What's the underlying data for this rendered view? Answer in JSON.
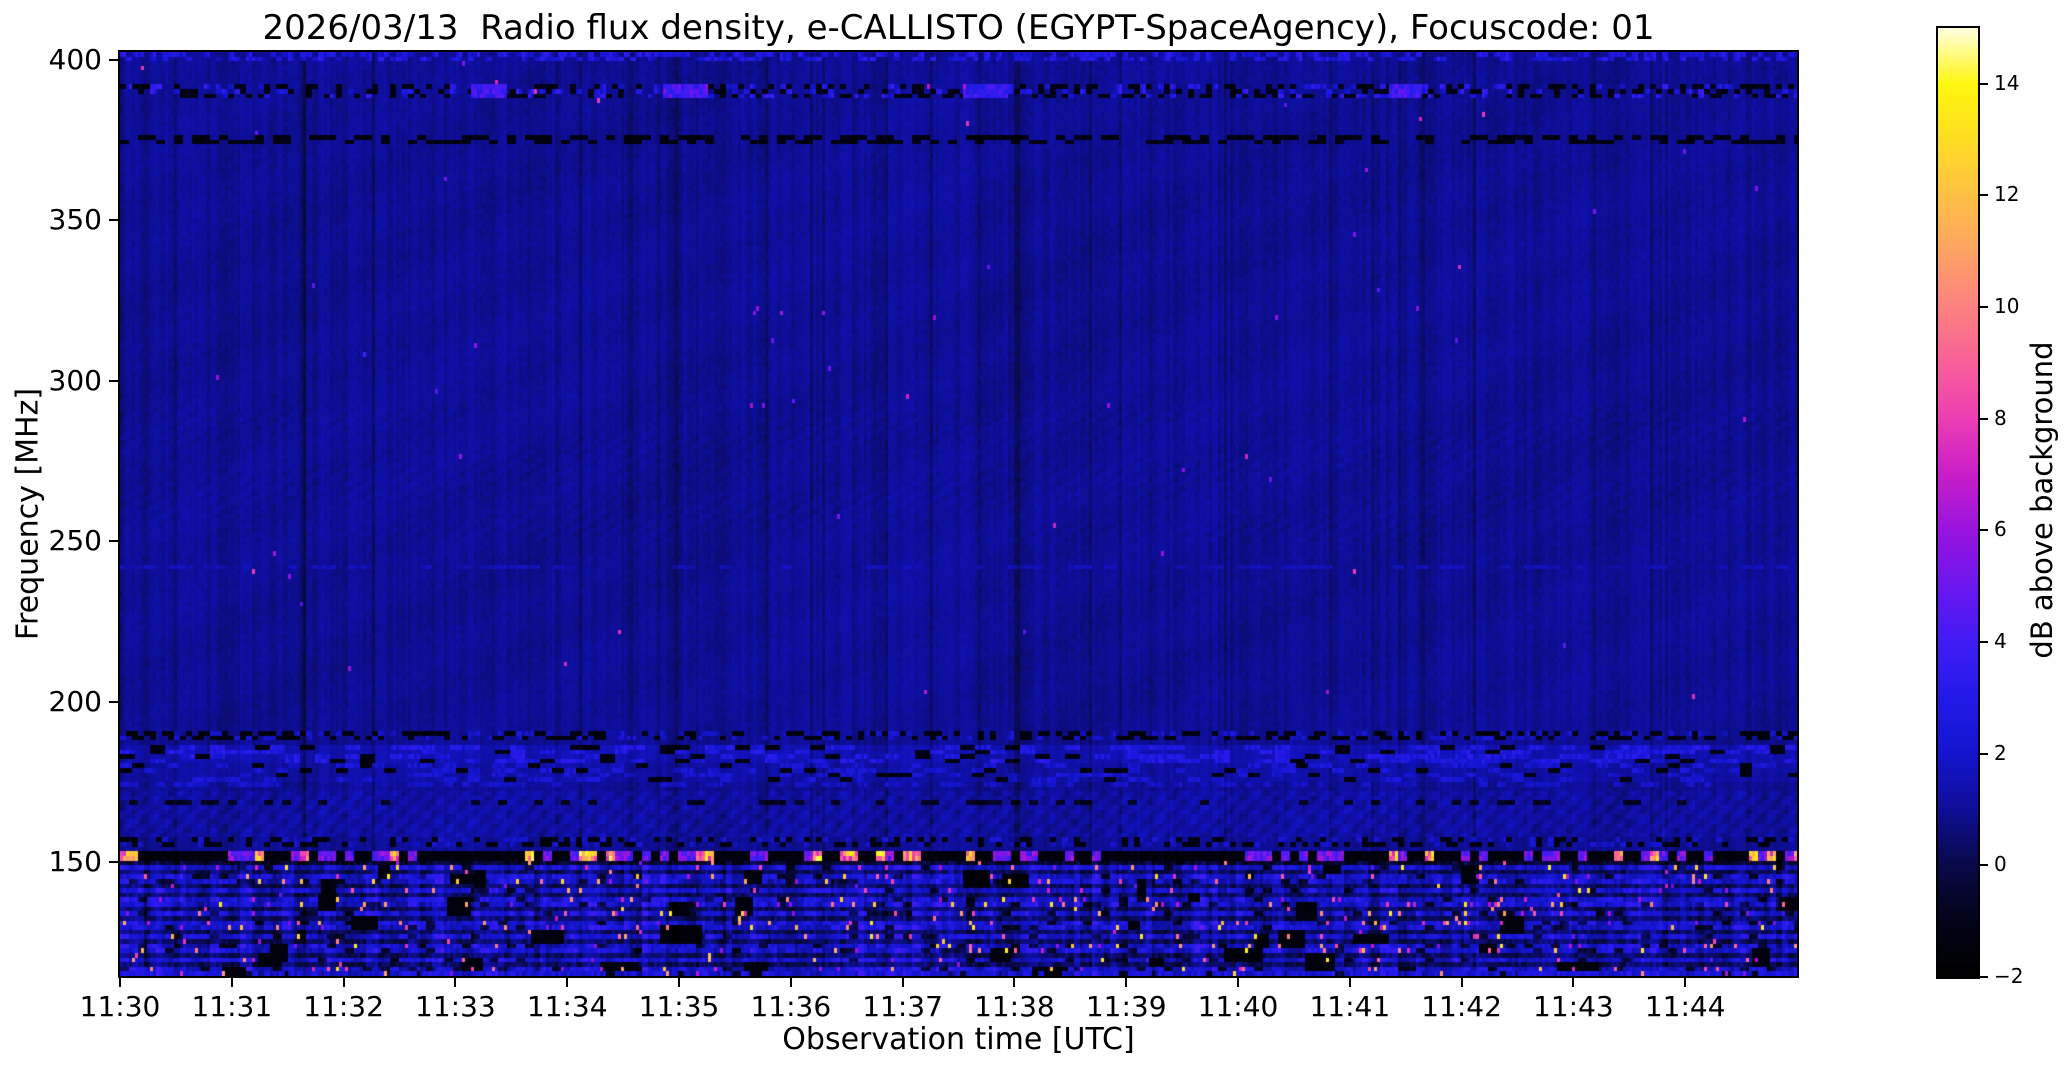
{
  "figure": {
    "background": "#ffffff"
  },
  "chart_data": {
    "type": "heatmap",
    "title": "2026/03/13  Radio flux density, e-CALLISTO (EGYPT-SpaceAgency), Focuscode: 01",
    "xlabel": "Observation time [UTC]",
    "ylabel": "Frequency [MHz]",
    "x_range_minutes": [
      0,
      15
    ],
    "x_start_label": "11:30",
    "x_ticks": [
      {
        "minute": 0,
        "label": "11:30"
      },
      {
        "minute": 1,
        "label": "11:31"
      },
      {
        "minute": 2,
        "label": "11:32"
      },
      {
        "minute": 3,
        "label": "11:33"
      },
      {
        "minute": 4,
        "label": "11:34"
      },
      {
        "minute": 5,
        "label": "11:35"
      },
      {
        "minute": 6,
        "label": "11:36"
      },
      {
        "minute": 7,
        "label": "11:37"
      },
      {
        "minute": 8,
        "label": "11:38"
      },
      {
        "minute": 9,
        "label": "11:39"
      },
      {
        "minute": 10,
        "label": "11:40"
      },
      {
        "minute": 11,
        "label": "11:41"
      },
      {
        "minute": 12,
        "label": "11:42"
      },
      {
        "minute": 13,
        "label": "11:43"
      },
      {
        "minute": 14,
        "label": "11:44"
      }
    ],
    "ylim": [
      114.5,
      402.5
    ],
    "y_ticks": [
      {
        "v": 400,
        "label": "400"
      },
      {
        "v": 350,
        "label": "350"
      },
      {
        "v": 300,
        "label": "300"
      },
      {
        "v": 250,
        "label": "250"
      },
      {
        "v": 200,
        "label": "200"
      },
      {
        "v": 150,
        "label": "150"
      }
    ],
    "grid": false,
    "legend": "colorbar-right",
    "colorbar": {
      "label": "dB above background",
      "range": [
        -2,
        15
      ],
      "ticks": [
        {
          "v": -2,
          "label": "−2"
        },
        {
          "v": 0,
          "label": "0"
        },
        {
          "v": 2,
          "label": "2"
        },
        {
          "v": 4,
          "label": "4"
        },
        {
          "v": 6,
          "label": "6"
        },
        {
          "v": 8,
          "label": "8"
        },
        {
          "v": 10,
          "label": "10"
        },
        {
          "v": 12,
          "label": "12"
        },
        {
          "v": 14,
          "label": "14"
        }
      ],
      "stops": [
        [
          -2,
          "#000000"
        ],
        [
          -1,
          "#030318"
        ],
        [
          0,
          "#090948"
        ],
        [
          1,
          "#0e0e96"
        ],
        [
          2,
          "#1414cd"
        ],
        [
          3,
          "#221ae8"
        ],
        [
          4,
          "#401cf4"
        ],
        [
          5,
          "#6c16ee"
        ],
        [
          6,
          "#9814de"
        ],
        [
          7,
          "#c81ec8"
        ],
        [
          8,
          "#ec3eb4"
        ],
        [
          9,
          "#f86098"
        ],
        [
          10,
          "#fc8280"
        ],
        [
          11,
          "#fda364"
        ],
        [
          12,
          "#fec044"
        ],
        [
          13,
          "#fedd22"
        ],
        [
          14,
          "#fff610"
        ],
        [
          15,
          "#ffffe0"
        ]
      ]
    },
    "spectrogram": {
      "seed": 20260313,
      "grid": {
        "cols": 559,
        "rows": 200
      },
      "base_level_db": 1.0,
      "cell_noise": 0.3,
      "column_gain_spread": 0.5,
      "dark_column_fraction": 0.06,
      "dark_column_extra": -0.45,
      "spot_probability": 0.0007,
      "spot_values": [
        4.0,
        8.0
      ],
      "vertical_dark_lines": [
        {
          "minute": 1.62,
          "half_width_cols": 2.0,
          "depth": 0.75
        },
        {
          "minute": 4.55,
          "half_width_cols": 1.2,
          "depth": 0.45
        },
        {
          "minute": 4.95,
          "half_width_cols": 2.0,
          "depth": 0.8
        },
        {
          "minute": 5.15,
          "half_width_cols": 1.2,
          "depth": 0.5
        },
        {
          "minute": 6.55,
          "half_width_cols": 1.0,
          "depth": 0.3
        },
        {
          "minute": 7.68,
          "half_width_cols": 1.5,
          "depth": 0.55
        },
        {
          "minute": 8.02,
          "half_width_cols": 2.0,
          "depth": 0.9
        },
        {
          "minute": 11.2,
          "half_width_cols": 1.0,
          "depth": 0.3
        },
        {
          "minute": 13.35,
          "half_width_cols": 1.0,
          "depth": 0.35
        }
      ],
      "bands": [
        {
          "type": "bright_dashes",
          "salt": 1,
          "f": [
            399.5,
            402.5
          ],
          "p": 0.5,
          "v": [
            1.6,
            3.6
          ],
          "run": 2
        },
        {
          "type": "mixed_speckle",
          "salt": 2,
          "f": [
            387.5,
            392.5
          ],
          "p_dark": 0.32,
          "v_dark": [
            -1.6,
            -0.8
          ],
          "p_bright": 0.3,
          "v_bright": [
            1.6,
            4.0
          ],
          "run": 2,
          "bright_segments": [
            {
              "m": [
                3.15,
                3.45
              ],
              "v": 4.2
            },
            {
              "m": [
                4.85,
                5.25
              ],
              "v": 4.6
            },
            {
              "m": [
                7.55,
                7.95
              ],
              "v": 3.8
            },
            {
              "m": [
                11.35,
                11.65
              ],
              "v": 4.2
            }
          ]
        },
        {
          "type": "dark_dashes",
          "salt": 3,
          "f": [
            373.0,
            376.2
          ],
          "p": 0.5,
          "v": [
            -1.7,
            -0.9
          ],
          "run": 3
        },
        {
          "type": "moire",
          "salt": 4,
          "f": [
            250.0,
            292.0
          ],
          "amp": 0.11,
          "kx": 0.85,
          "ky": 2.1
        },
        {
          "type": "bright_dashes",
          "salt": 5,
          "f": [
            240.8,
            243.2
          ],
          "p": 0.42,
          "v": [
            1.2,
            1.9
          ],
          "run": 4
        },
        {
          "type": "mixed_speckle",
          "salt": 6,
          "f": [
            188.6,
            191.2
          ],
          "p_dark": 0.4,
          "v_dark": [
            -1.7,
            -1.0
          ],
          "p_bright": 0.38,
          "v_bright": [
            1.2,
            2.6
          ],
          "run": 2
        },
        {
          "type": "blob_band",
          "salt": 7,
          "f": [
            181.0,
            186.8
          ],
          "lift": 0.5,
          "p_bright": 0.33,
          "v_bright": [
            1.8,
            3.4
          ],
          "p_gap": 0.1,
          "run": 5
        },
        {
          "type": "blob_band",
          "salt": 8,
          "f": [
            175.6,
            180.2
          ],
          "lift": 0.25,
          "p_bright": 0.28,
          "v_bright": [
            1.5,
            2.8
          ],
          "p_gap": 0.12,
          "run": 4
        },
        {
          "type": "bright_dashes",
          "salt": 9,
          "f": [
            173.6,
            175.2
          ],
          "p": 0.4,
          "v": [
            1.3,
            2.4
          ],
          "run": 3
        },
        {
          "type": "hatch",
          "salt": 10,
          "f": [
            157.5,
            172.8
          ],
          "lift": 0.22,
          "amp": 0.3,
          "kx": 1.05,
          "ky": 1.65
        },
        {
          "type": "dark_dashes",
          "salt": 11,
          "f": [
            168.2,
            169.8
          ],
          "p": 0.25,
          "v": [
            -1.2,
            -0.5
          ],
          "run": 3
        },
        {
          "type": "mixed_speckle",
          "salt": 12,
          "f": [
            154.8,
            157.4
          ],
          "p_dark": 0.3,
          "v_dark": [
            -1.6,
            -0.9
          ],
          "p_bright": 0.25,
          "v_bright": [
            1.3,
            2.5
          ],
          "run": 2
        },
        {
          "type": "beacon_line",
          "salt": 13,
          "f": [
            150.4,
            152.8
          ],
          "floor": [
            -1.7,
            -1.2
          ],
          "p_hot": 0.12,
          "v_hot": [
            7.0,
            14.5
          ],
          "p_mid": 0.22,
          "v_mid": [
            3.5,
            6.5
          ],
          "run": 3
        },
        {
          "type": "rfi_busy",
          "salt": 14,
          "f": [
            114.4,
            150.2
          ],
          "base": 0.75,
          "stripe": 1.5,
          "hot_lines": [
            148.3,
            145.9,
            143.4,
            140.9,
            138.4,
            136.4,
            133.9,
            131.4,
            129.4,
            126.9,
            124.4,
            121.9,
            119.4,
            116.9,
            114.9
          ],
          "p_dot": 0.01,
          "v_dot": [
            4.5,
            12.5
          ],
          "p_line_dot": 0.035,
          "v_line_dot": [
            5.0,
            14.0
          ],
          "black_patches": 42
        },
        {
          "type": "bright_dashes",
          "salt": 15,
          "f": [
            114.4,
            115.6
          ],
          "p": 0.5,
          "v": [
            1.6,
            3.2
          ],
          "run": 2
        }
      ]
    },
    "description": "15-minute solar radio spectrogram: quiet blue background above ~190 MHz with faint vertical striping and dark dropout columns; speckled interference bands near 390 and 374 MHz; faint carrier near 242 MHz; strong terrestrial RFI bands 150-190 MHz; dashed beacon line near 151 MHz with white/pink hot dashes; dense RFI speckle with magenta/orange hot pixels below 150 MHz."
  }
}
